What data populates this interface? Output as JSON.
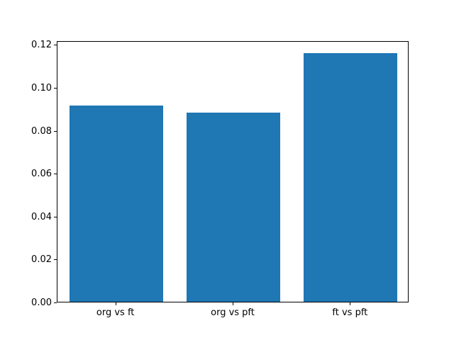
{
  "chart_data": {
    "type": "bar",
    "title": "",
    "xlabel": "",
    "ylabel": "",
    "categories": [
      "org vs ft",
      "org vs pft",
      "ft vs pft"
    ],
    "values": [
      0.0915,
      0.088,
      0.116
    ],
    "bar_color": "#1f77b4",
    "bar_width_fraction": 0.8,
    "ylim": [
      0,
      0.1218
    ],
    "yticks": [
      0.0,
      0.02,
      0.04,
      0.06,
      0.08,
      0.1,
      0.12
    ],
    "ytick_labels": [
      "0.00",
      "0.02",
      "0.04",
      "0.06",
      "0.08",
      "0.10",
      "0.12"
    ],
    "grid": false,
    "legend": null,
    "frame_color": "#000000",
    "background_color": "#ffffff"
  }
}
